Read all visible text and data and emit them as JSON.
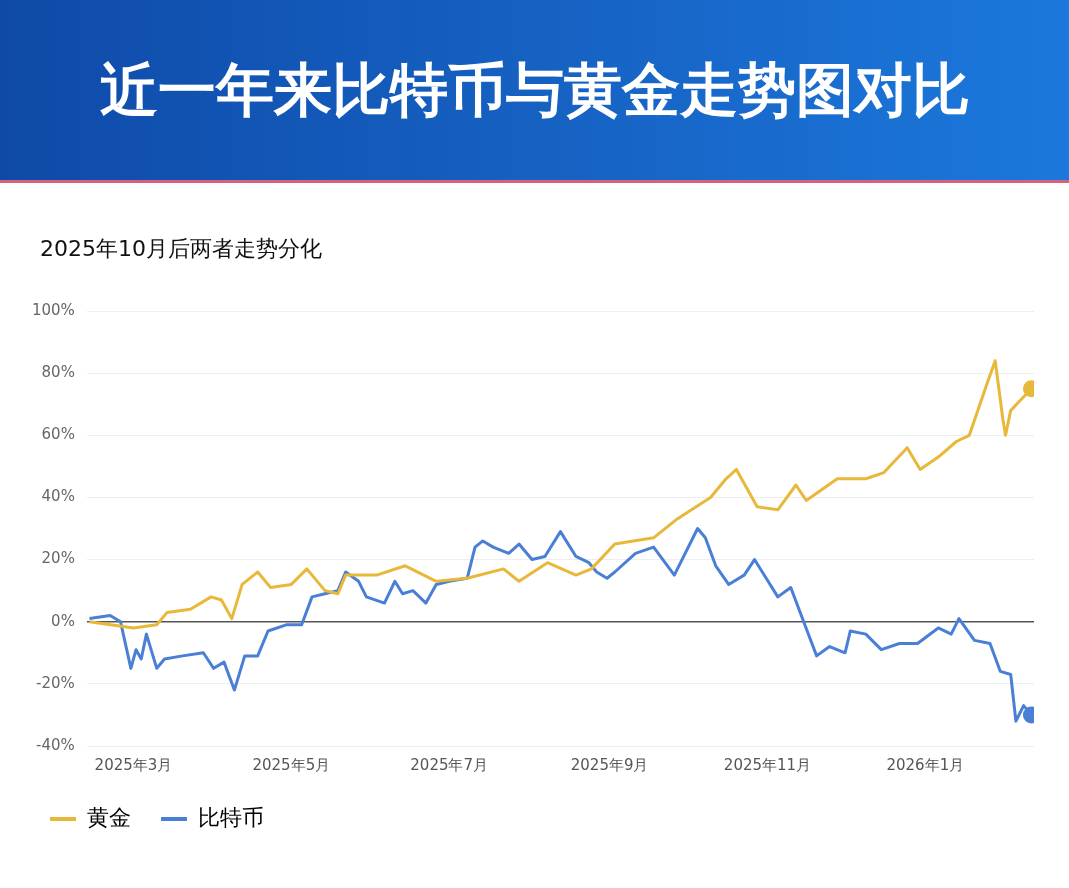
{
  "chart_data": {
    "type": "line",
    "title": "近一年来比特币与黄金走势图对比",
    "subtitle": "2025年10月后两者走势分化",
    "xlim": [
      "2025-02-11",
      "2026-02-12"
    ],
    "xticks": [
      {
        "value": "2025-03-01",
        "label": "2025年3月"
      },
      {
        "value": "2025-05-01",
        "label": "2025年5月"
      },
      {
        "value": "2025-07-01",
        "label": "2025年7月"
      },
      {
        "value": "2025-09-01",
        "label": "2025年9月"
      },
      {
        "value": "2025-11-01",
        "label": "2025年11月"
      },
      {
        "value": "2026-01-01",
        "label": "2026年1月"
      }
    ],
    "ylim": [
      -40,
      100
    ],
    "yticks": [
      {
        "value": -40,
        "label": "-40%"
      },
      {
        "value": -20,
        "label": "-20%"
      },
      {
        "value": 0,
        "label": "0%"
      },
      {
        "value": 20,
        "label": "20%"
      },
      {
        "value": 40,
        "label": "40%"
      },
      {
        "value": 60,
        "label": "60%"
      },
      {
        "value": 80,
        "label": "80%"
      },
      {
        "value": 100,
        "label": "100%"
      }
    ],
    "grid": "y",
    "legend": "bottom left",
    "marker": "none",
    "line_style": "solid",
    "ref_lines": [
      {
        "axis": "y",
        "value": 0,
        "color": "#555555"
      }
    ],
    "series": [
      {
        "name": "黄金",
        "color": "#e8b83a",
        "x": [
          "2025-02-12",
          "2025-03-01",
          "2025-03-10",
          "2025-03-14",
          "2025-03-23",
          "2025-03-31",
          "2025-04-04",
          "2025-04-08",
          "2025-04-12",
          "2025-04-18",
          "2025-04-23",
          "2025-05-01",
          "2025-05-07",
          "2025-05-14",
          "2025-05-19",
          "2025-05-22",
          "2025-06-03",
          "2025-06-14",
          "2025-06-26",
          "2025-07-08",
          "2025-07-22",
          "2025-07-28",
          "2025-08-08",
          "2025-08-19",
          "2025-08-25",
          "2025-09-03",
          "2025-09-18",
          "2025-09-27",
          "2025-10-10",
          "2025-10-16",
          "2025-10-20",
          "2025-10-28",
          "2025-11-05",
          "2025-11-12",
          "2025-11-16",
          "2025-11-28",
          "2025-12-09",
          "2025-12-16",
          "2025-12-25",
          "2025-12-30",
          "2026-01-06",
          "2026-01-13",
          "2026-01-18",
          "2026-01-25",
          "2026-01-28",
          "2026-01-31",
          "2026-02-01",
          "2026-02-03",
          "2026-02-11"
        ],
        "values": [
          0,
          -2,
          -1,
          3,
          4,
          8,
          7,
          1,
          12,
          16,
          11,
          12,
          17,
          10,
          9,
          15,
          15,
          18,
          13,
          14,
          17,
          13,
          19,
          15,
          17,
          25,
          27,
          33,
          40,
          46,
          49,
          37,
          36,
          44,
          39,
          46,
          46,
          48,
          56,
          49,
          53,
          58,
          60,
          77,
          84,
          65,
          60,
          68,
          75
        ]
      },
      {
        "name": "比特币",
        "color": "#4a7fd6",
        "x": [
          "2025-02-12",
          "2025-02-20",
          "2025-02-24",
          "2025-02-28",
          "2025-03-02",
          "2025-03-04",
          "2025-03-06",
          "2025-03-10",
          "2025-03-13",
          "2025-03-20",
          "2025-03-28",
          "2025-04-01",
          "2025-04-05",
          "2025-04-09",
          "2025-04-13",
          "2025-04-18",
          "2025-04-22",
          "2025-04-29",
          "2025-05-05",
          "2025-05-09",
          "2025-05-14",
          "2025-05-19",
          "2025-05-22",
          "2025-05-27",
          "2025-05-30",
          "2025-06-06",
          "2025-06-10",
          "2025-06-13",
          "2025-06-17",
          "2025-06-22",
          "2025-06-26",
          "2025-07-01",
          "2025-07-08",
          "2025-07-11",
          "2025-07-14",
          "2025-07-18",
          "2025-07-24",
          "2025-07-28",
          "2025-08-02",
          "2025-08-07",
          "2025-08-13",
          "2025-08-19",
          "2025-08-24",
          "2025-08-27",
          "2025-08-31",
          "2025-09-03",
          "2025-09-11",
          "2025-09-18",
          "2025-09-26",
          "2025-09-29",
          "2025-10-05",
          "2025-10-08",
          "2025-10-12",
          "2025-10-17",
          "2025-10-23",
          "2025-10-27",
          "2025-11-05",
          "2025-11-10",
          "2025-11-15",
          "2025-11-20",
          "2025-11-25",
          "2025-12-01",
          "2025-12-03",
          "2025-12-09",
          "2025-12-15",
          "2025-12-22",
          "2025-12-29",
          "2026-01-06",
          "2026-01-11",
          "2026-01-14",
          "2026-01-20",
          "2026-01-26",
          "2026-01-30",
          "2026-02-03",
          "2026-02-05",
          "2026-02-08",
          "2026-02-11"
        ],
        "values": [
          1,
          2,
          0,
          -15,
          -9,
          -12,
          -4,
          -15,
          -12,
          -11,
          -10,
          -15,
          -13,
          -22,
          -11,
          -11,
          -3,
          -1,
          -1,
          8,
          9,
          10,
          16,
          13,
          8,
          6,
          13,
          9,
          10,
          6,
          12,
          13,
          14,
          24,
          26,
          24,
          22,
          25,
          20,
          21,
          29,
          21,
          19,
          16,
          14,
          16,
          22,
          24,
          15,
          20,
          30,
          27,
          18,
          12,
          15,
          20,
          8,
          11,
          0,
          -11,
          -8,
          -10,
          -3,
          -4,
          -9,
          -7,
          -7,
          -2,
          -4,
          1,
          -6,
          -7,
          -16,
          -17,
          -32,
          -27,
          -30
        ]
      }
    ]
  }
}
